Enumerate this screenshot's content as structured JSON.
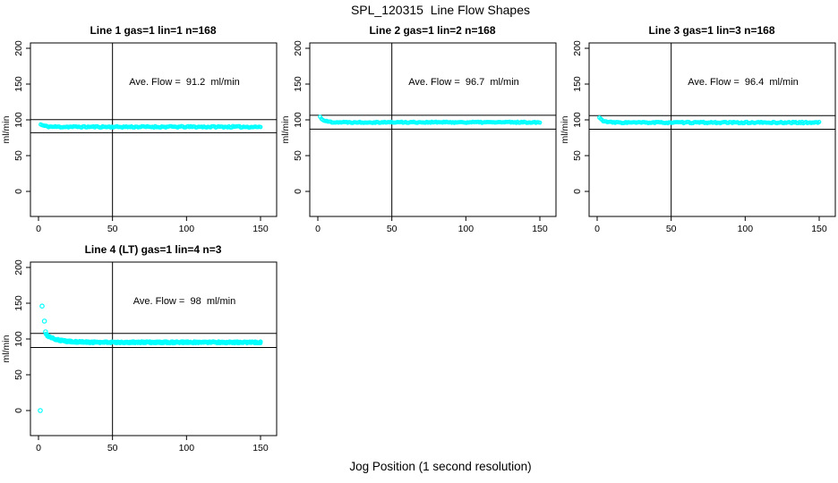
{
  "title": "SPL_120315  Line Flow Shapes",
  "xlabel": "Jog Position (1 second resolution)",
  "ylabel": "ml/min",
  "colors": {
    "points": "#00FFFF",
    "axis": "#000000",
    "background": "#FFFFFF"
  },
  "axes": {
    "x_ticks": [
      0,
      50,
      100,
      150
    ],
    "y_ticks": [
      0,
      50,
      100,
      150,
      200
    ],
    "xlim": [
      -5.5,
      160.5
    ],
    "ylim": [
      -35,
      207.5
    ],
    "grid": false
  },
  "chart_data": [
    {
      "type": "scatter",
      "title": "Line 1 gas=1 lin=1 n=168",
      "annotation": "Ave. Flow =  91.2  ml/min",
      "ave_flow": 91.2,
      "n": 168,
      "vline_x": 50,
      "hlines": [
        100.3,
        82.1
      ],
      "band": {
        "x_start": 1.5,
        "x_end": 150,
        "points": 168,
        "runs": 1,
        "y_start": 93.5,
        "y_settle": 90.2,
        "decay": 3,
        "jitter": 1.0,
        "seed": 11
      },
      "outliers": []
    },
    {
      "type": "scatter",
      "title": "Line 2 gas=1 lin=2 n=168",
      "annotation": "Ave. Flow =  96.7  ml/min",
      "ave_flow": 96.7,
      "n": 168,
      "vline_x": 50,
      "hlines": [
        106.4,
        87.0
      ],
      "band": {
        "x_start": 1.5,
        "x_end": 150,
        "points": 168,
        "runs": 1,
        "y_start": 104,
        "y_settle": 96.6,
        "decay": 3,
        "jitter": 0.8,
        "seed": 22
      },
      "outliers": []
    },
    {
      "type": "scatter",
      "title": "Line 3 gas=1 lin=3 n=168",
      "annotation": "Ave. Flow =  96.4  ml/min",
      "ave_flow": 96.4,
      "n": 168,
      "vline_x": 50,
      "hlines": [
        106.0,
        86.8
      ],
      "band": {
        "x_start": 1.5,
        "x_end": 150,
        "points": 168,
        "runs": 1,
        "y_start": 103,
        "y_settle": 96.2,
        "decay": 3,
        "jitter": 0.9,
        "seed": 33
      },
      "outliers": []
    },
    {
      "type": "scatter",
      "title": "Line 4 (LT) gas=1 lin=4 n=3",
      "annotation": "Ave. Flow =  98  ml/min",
      "ave_flow": 98,
      "n": 3,
      "vline_x": 50,
      "hlines": [
        107.8,
        88.2
      ],
      "band": {
        "x_start": 5,
        "x_end": 150,
        "points": 160,
        "runs": 3,
        "y_start": 106,
        "y_settle": 95.3,
        "decay": 8,
        "jitter": 1.2,
        "seed": 44
      },
      "outliers": [
        [
          1.2,
          0
        ],
        [
          2.4,
          146
        ],
        [
          4.0,
          125
        ],
        [
          4.8,
          110
        ]
      ]
    }
  ]
}
